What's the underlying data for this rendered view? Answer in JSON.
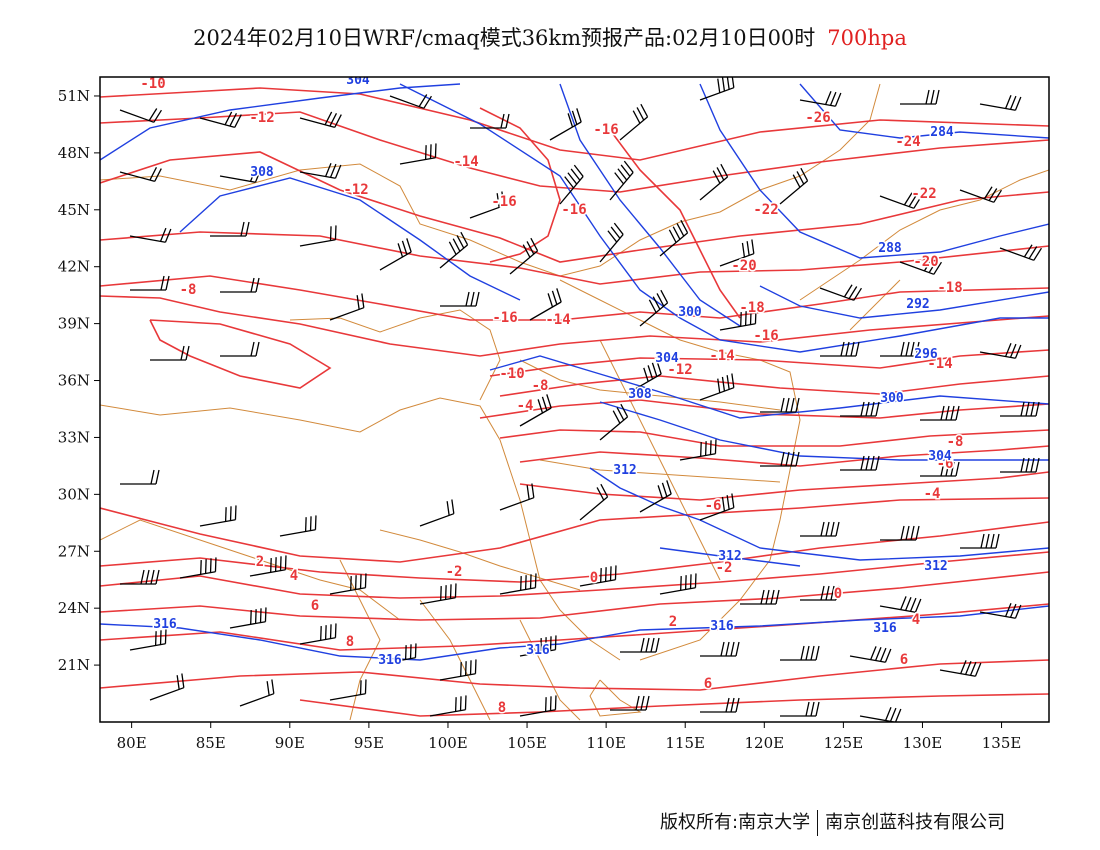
{
  "header": {
    "title": "2024年02月10日WRF/cmaq模式36km预报产品:02月10日00时",
    "level": "700hpa"
  },
  "map": {
    "lon_range": [
      78,
      138
    ],
    "lat_range": [
      18,
      52
    ],
    "x_tick_labels": [
      "80E",
      "85E",
      "90E",
      "95E",
      "100E",
      "105E",
      "110E",
      "115E",
      "120E",
      "125E",
      "130E",
      "135E"
    ],
    "y_tick_labels": [
      "51N",
      "48N",
      "45N",
      "42N",
      "39N",
      "36N",
      "33N",
      "30N",
      "27N",
      "24N",
      "21N"
    ],
    "colors": {
      "temperature": "#e8383a",
      "geopotential": "#2040e0",
      "border": "#d28a3c",
      "wind": "#000000"
    },
    "temperature_labels": [
      "-10",
      "-12",
      "-14",
      "-16",
      "-18",
      "-20",
      "-22",
      "-24",
      "-26",
      "-8",
      "-6",
      "-4",
      "-2",
      "0",
      "2",
      "4",
      "6",
      "8"
    ],
    "height_labels": [
      "284",
      "288",
      "292",
      "296",
      "300",
      "304",
      "308",
      "312",
      "316"
    ]
  },
  "footer": {
    "copyright": "版权所有:南京大学",
    "company": "南京创蓝科技有限公司"
  }
}
